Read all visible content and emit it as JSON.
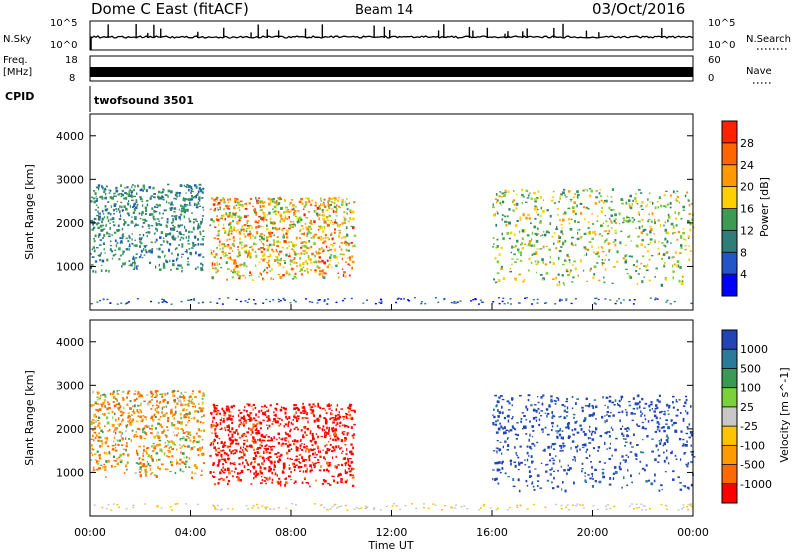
{
  "header": {
    "station": "Dome C East (fitACF)",
    "beam": "Beam 14",
    "date": "03/Oct/2016"
  },
  "nsky_panel": {
    "left_label": "N.Sky",
    "left_ticks": [
      "10^5",
      "10^0"
    ],
    "right_ticks": [
      "10^5",
      "10^0"
    ],
    "right_label": "N.Search"
  },
  "freq_panel": {
    "left_label_1": "Freq.",
    "left_label_2": "[MHz]",
    "left_ticks": [
      "18",
      "8"
    ],
    "right_ticks": [
      "60",
      "0"
    ],
    "right_label": "Nave"
  },
  "cpid_panel": {
    "label": "CPID",
    "value": "twofsound 3501"
  },
  "colors": {
    "power_scale": [
      "#0000ff",
      "#2255c8",
      "#2e7d7a",
      "#3c9a55",
      "#7fcc33",
      "#ffd000",
      "#ff9900",
      "#ff6600",
      "#ff2200"
    ],
    "velocity_scale": [
      "#ff0000",
      "#ff6a00",
      "#ff9a00",
      "#ffc400",
      "#c8c8c8",
      "#7cd03c",
      "#3a9a55",
      "#2a7a9a",
      "#2244b4"
    ]
  },
  "chart_data": [
    {
      "type": "heatmap",
      "title": "",
      "xlabel": "",
      "ylabel": "Slant Range [km]",
      "xlim": [
        "00:00",
        "24:00"
      ],
      "ylim": [
        0,
        4500
      ],
      "y_ticks": [
        1000,
        2000,
        3000,
        4000
      ],
      "colorbar": {
        "label": "Power [dB]",
        "ticks": [
          4,
          8,
          12,
          16,
          20,
          24,
          28
        ],
        "range": [
          0,
          32
        ]
      },
      "echo_regions": [
        {
          "start": "00:00",
          "end": "04:30",
          "range_km": [
            900,
            2900
          ],
          "power_db": [
            6,
            14
          ]
        },
        {
          "start": "04:45",
          "end": "10:30",
          "range_km": [
            700,
            2600
          ],
          "power_db": [
            12,
            30
          ]
        },
        {
          "start": "16:00",
          "end": "24:00",
          "range_km": [
            600,
            2800
          ],
          "power_db": [
            8,
            24
          ]
        }
      ]
    },
    {
      "type": "heatmap",
      "title": "",
      "xlabel": "Time UT",
      "ylabel": "Slant Range [km]",
      "xlim": [
        "00:00",
        "24:00"
      ],
      "ylim": [
        0,
        4500
      ],
      "x_ticks": [
        "00:00",
        "04:00",
        "08:00",
        "12:00",
        "16:00",
        "20:00",
        "00:00"
      ],
      "y_ticks": [
        1000,
        2000,
        3000,
        4000
      ],
      "colorbar": {
        "label": "Velocity [m s^-1]",
        "ticks": [
          1000,
          500,
          100,
          25,
          -25,
          -100,
          -500,
          -1000
        ]
      },
      "echo_regions": [
        {
          "start": "00:00",
          "end": "04:30",
          "range_km": [
            900,
            2900
          ],
          "velocity_ms": [
            -100,
            25
          ]
        },
        {
          "start": "04:45",
          "end": "10:30",
          "range_km": [
            700,
            2600
          ],
          "velocity_ms": [
            -1000,
            -100
          ]
        },
        {
          "start": "16:00",
          "end": "24:00",
          "range_km": [
            600,
            2800
          ],
          "velocity_ms": [
            100,
            1000
          ]
        }
      ]
    }
  ]
}
